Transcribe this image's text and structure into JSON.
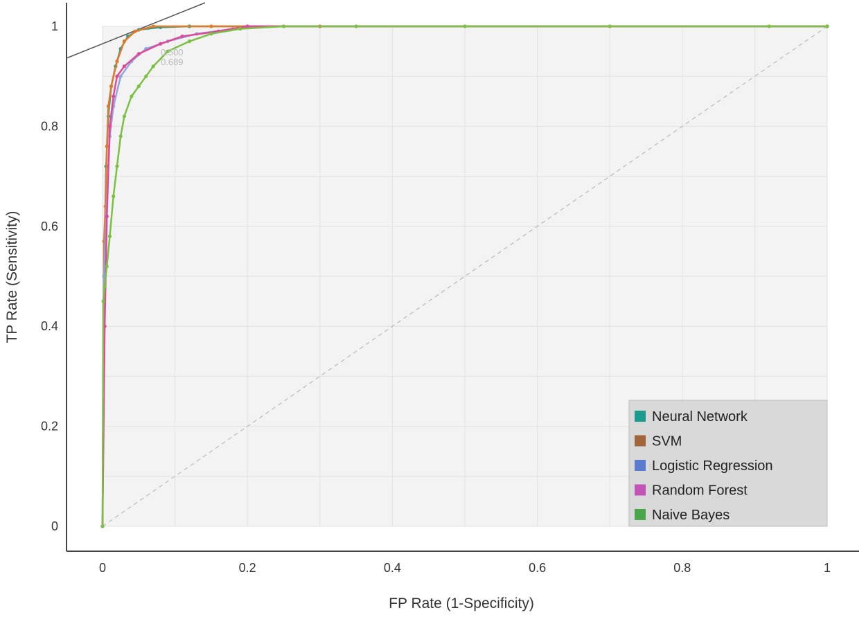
{
  "chart_data": {
    "type": "line",
    "title": "",
    "xlabel": "FP Rate (1-Specificity)",
    "ylabel": "TP Rate (Sensitivity)",
    "xlim": [
      0,
      1
    ],
    "ylim": [
      0,
      1
    ],
    "xticks": [
      "0",
      "0.2",
      "0.4",
      "0.6",
      "0.8",
      "1"
    ],
    "yticks": [
      "0",
      "0.2",
      "0.4",
      "0.6",
      "0.8",
      "1"
    ],
    "grid": true,
    "legend_position": "bottom-right",
    "diagonal_reference": true,
    "threshold_labels": [
      "0.500",
      "0.689"
    ],
    "series": [
      {
        "name": "Neural Network",
        "color": "#2a9d8f",
        "points": [
          [
            0,
            0
          ],
          [
            0.002,
            0.5
          ],
          [
            0.005,
            0.72
          ],
          [
            0.008,
            0.82
          ],
          [
            0.012,
            0.88
          ],
          [
            0.018,
            0.92
          ],
          [
            0.025,
            0.955
          ],
          [
            0.035,
            0.98
          ],
          [
            0.05,
            0.993
          ],
          [
            0.08,
            0.998
          ],
          [
            0.12,
            1
          ],
          [
            0.2,
            1
          ],
          [
            1,
            1
          ]
        ]
      },
      {
        "name": "SVM",
        "color": "#e07b2a",
        "points": [
          [
            0,
            0
          ],
          [
            0.002,
            0.57
          ],
          [
            0.004,
            0.64
          ],
          [
            0.006,
            0.76
          ],
          [
            0.008,
            0.84
          ],
          [
            0.012,
            0.88
          ],
          [
            0.02,
            0.93
          ],
          [
            0.03,
            0.97
          ],
          [
            0.045,
            0.99
          ],
          [
            0.07,
            1
          ],
          [
            0.15,
            1
          ],
          [
            0.3,
            1
          ],
          [
            1,
            1
          ]
        ]
      },
      {
        "name": "Logistic Regression",
        "color": "#8fa6d8",
        "points": [
          [
            0,
            0
          ],
          [
            0.002,
            0.5
          ],
          [
            0.005,
            0.62
          ],
          [
            0.01,
            0.78
          ],
          [
            0.015,
            0.84
          ],
          [
            0.025,
            0.9
          ],
          [
            0.04,
            0.93
          ],
          [
            0.06,
            0.955
          ],
          [
            0.09,
            0.97
          ],
          [
            0.13,
            0.985
          ],
          [
            0.18,
            0.995
          ],
          [
            0.25,
            1
          ],
          [
            1,
            1
          ]
        ]
      },
      {
        "name": "Random Forest",
        "color": "#e0489a",
        "points": [
          [
            0,
            0
          ],
          [
            0.003,
            0.4
          ],
          [
            0.006,
            0.62
          ],
          [
            0.01,
            0.8
          ],
          [
            0.015,
            0.86
          ],
          [
            0.02,
            0.9
          ],
          [
            0.03,
            0.92
          ],
          [
            0.05,
            0.945
          ],
          [
            0.08,
            0.965
          ],
          [
            0.11,
            0.98
          ],
          [
            0.16,
            0.99
          ],
          [
            0.2,
            1
          ],
          [
            1,
            1
          ]
        ]
      },
      {
        "name": "Naive Bayes",
        "color": "#7ac143",
        "points": [
          [
            0,
            0
          ],
          [
            0.001,
            0.45
          ],
          [
            0.003,
            0.48
          ],
          [
            0.006,
            0.52
          ],
          [
            0.01,
            0.58
          ],
          [
            0.015,
            0.66
          ],
          [
            0.02,
            0.72
          ],
          [
            0.025,
            0.78
          ],
          [
            0.03,
            0.82
          ],
          [
            0.04,
            0.86
          ],
          [
            0.05,
            0.88
          ],
          [
            0.06,
            0.9
          ],
          [
            0.07,
            0.92
          ],
          [
            0.09,
            0.95
          ],
          [
            0.12,
            0.97
          ],
          [
            0.15,
            0.985
          ],
          [
            0.19,
            0.995
          ],
          [
            0.25,
            1
          ],
          [
            0.35,
            1
          ],
          [
            0.5,
            1
          ],
          [
            0.7,
            1
          ],
          [
            0.92,
            1
          ],
          [
            1,
            1
          ]
        ]
      }
    ]
  },
  "legend": {
    "items": [
      {
        "label": "Neural Network",
        "color": "#1a9b8e"
      },
      {
        "label": "SVM",
        "color": "#a0653a"
      },
      {
        "label": "Logistic Regression",
        "color": "#5b7bcf"
      },
      {
        "label": "Random Forest",
        "color": "#c254b8"
      },
      {
        "label": "Naive Bayes",
        "color": "#4aa64a"
      }
    ]
  }
}
